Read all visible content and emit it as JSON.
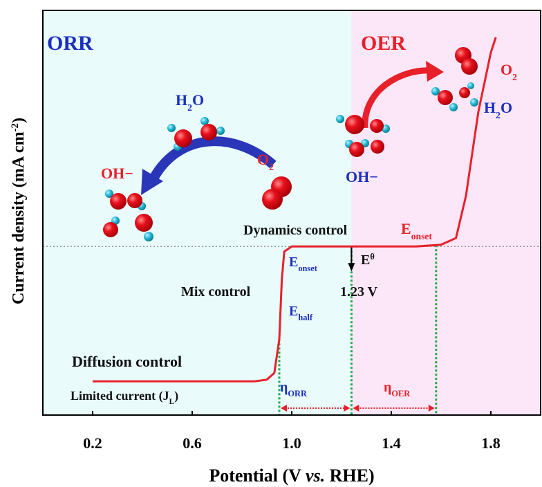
{
  "chart_data": {
    "type": "line",
    "x_label": [
      {
        "t": "Potential (V "
      },
      {
        "t": "vs.",
        "italic": true
      },
      {
        "t": " RHE)"
      }
    ],
    "y_label": [
      {
        "t": "Current density (mA cm"
      },
      {
        "t": "-2",
        "sup": true
      },
      {
        "t": ")"
      }
    ],
    "xlim": [
      0,
      2.0
    ],
    "ylim": [
      -1,
      1.4
    ],
    "xticks": [
      0.2,
      0.6,
      {
        "value": 1,
        "label": "1.0"
      },
      1.4,
      1.8
    ],
    "x": [
      0.2,
      0.85,
      0.9,
      0.93,
      0.95,
      0.96,
      0.97,
      1.0,
      1.5,
      1.6,
      1.66,
      1.7,
      1.75,
      1.8,
      1.82
    ],
    "values": [
      -0.8,
      -0.8,
      -0.79,
      -0.75,
      -0.55,
      -0.2,
      -0.03,
      0,
      0,
      0.01,
      0.05,
      0.3,
      0.8,
      1.15,
      1.24
    ],
    "color": "#e8202a",
    "zero_line": true,
    "guides": [
      0.95,
      1.24,
      1.58
    ],
    "guide_color": "#1faa4a",
    "arrow_color": "#e8202a",
    "regions": [
      {
        "from": 0,
        "to": 1.24,
        "color": "#e9fbfb"
      },
      {
        "from": 1.24,
        "to": 2.0,
        "color": "#fbe7f7"
      }
    ],
    "annotations": [
      {
        "color": "#1a2fbf",
        "parts": [
          {
            "t": "ORR"
          }
        ]
      },
      {
        "color": "#e8202a",
        "parts": [
          {
            "t": "OER"
          }
        ]
      },
      {
        "color": "#1a2fbf",
        "parts": [
          {
            "t": "H"
          },
          {
            "t": "2",
            "sub": true
          },
          {
            "t": "O"
          }
        ]
      },
      {
        "color": "#e8202a",
        "parts": [
          {
            "t": "O"
          },
          {
            "t": "2",
            "sub": true
          }
        ]
      },
      {
        "color": "#e8202a",
        "parts": [
          {
            "t": "OH−"
          }
        ]
      },
      {
        "color": "#1a2fbf",
        "parts": [
          {
            "t": "OH−"
          }
        ]
      },
      {
        "color": "#e8202a",
        "parts": [
          {
            "t": "O"
          },
          {
            "t": "2",
            "sub": true
          }
        ]
      },
      {
        "color": "#1a2fbf",
        "parts": [
          {
            "t": "H"
          },
          {
            "t": "2",
            "sub": true
          },
          {
            "t": "O"
          }
        ]
      },
      {
        "color": "#111111",
        "parts": [
          {
            "t": "Dynamics control"
          }
        ]
      },
      {
        "color": "#e8202a",
        "parts": [
          {
            "t": "E"
          },
          {
            "t": "onset",
            "sub": true
          }
        ]
      },
      {
        "color": "#1a2fbf",
        "parts": [
          {
            "t": "E"
          },
          {
            "t": "onset",
            "sub": true
          }
        ]
      },
      {
        "color": "#111111",
        "parts": [
          {
            "t": "E"
          },
          {
            "t": "θ",
            "sup": true
          }
        ]
      },
      {
        "color": "#111111",
        "parts": [
          {
            "t": "1.23 V"
          }
        ]
      },
      {
        "color": "#111111",
        "parts": [
          {
            "t": "Mix control"
          }
        ]
      },
      {
        "color": "#1a2fbf",
        "parts": [
          {
            "t": "E"
          },
          {
            "t": "half",
            "sub": true
          }
        ]
      },
      {
        "color": "#111111",
        "parts": [
          {
            "t": "Diffusion control"
          }
        ]
      },
      {
        "color": "#111111",
        "parts": [
          {
            "t": "Limited current (J"
          },
          {
            "t": "L",
            "sub": true
          },
          {
            "t": ")"
          }
        ]
      },
      {
        "color": "#1a2fbf",
        "parts": [
          {
            "t": "η"
          },
          {
            "t": "ORR",
            "sub": true
          }
        ]
      },
      {
        "color": "#e8202a",
        "parts": [
          {
            "t": "η"
          },
          {
            "t": "OER",
            "sub": true
          }
        ]
      }
    ]
  }
}
